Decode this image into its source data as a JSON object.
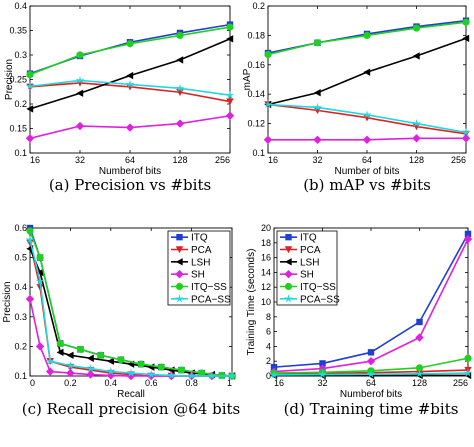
{
  "chart_data": [
    {
      "type": "line",
      "caption": "(a) Precision vs #bits",
      "xlabel": "Numberof bits",
      "ylabel": "Precision",
      "x": [
        16,
        32,
        64,
        128,
        256
      ],
      "x_ticks": [
        "16",
        "32",
        "64",
        "128",
        "256"
      ],
      "ylim": [
        0.1,
        0.4
      ],
      "y_ticks": [
        "0.1",
        "0.15",
        "0.2",
        "0.25",
        "0.3",
        "0.35",
        "0.4"
      ],
      "series": [
        {
          "id": "ITQ",
          "color": "#1f3fd0",
          "marker": "square",
          "values": [
            0.262,
            0.298,
            0.326,
            0.345,
            0.362
          ]
        },
        {
          "id": "PCA",
          "color": "#e02020",
          "marker": "triangle-down",
          "values": [
            0.235,
            0.243,
            0.235,
            0.224,
            0.205
          ]
        },
        {
          "id": "LSH",
          "color": "#000000",
          "marker": "triangle-left",
          "values": [
            0.19,
            0.222,
            0.258,
            0.29,
            0.333
          ]
        },
        {
          "id": "SH",
          "color": "#e020e0",
          "marker": "diamond",
          "values": [
            0.13,
            0.155,
            0.152,
            0.16,
            0.176
          ]
        },
        {
          "id": "ITQ-SS",
          "color": "#20d020",
          "marker": "circle",
          "values": [
            0.26,
            0.3,
            0.323,
            0.34,
            0.357
          ]
        },
        {
          "id": "PCA-SS",
          "color": "#20d8e0",
          "marker": "star",
          "values": [
            0.236,
            0.248,
            0.24,
            0.232,
            0.218
          ]
        }
      ]
    },
    {
      "type": "line",
      "caption": "(b) mAP vs #bits",
      "xlabel": "Number of bits",
      "ylabel": "mAP",
      "x": [
        16,
        32,
        64,
        128,
        256
      ],
      "x_ticks": [
        "16",
        "32",
        "64",
        "128",
        "256"
      ],
      "ylim": [
        0.1,
        0.2
      ],
      "y_ticks": [
        "0.1",
        "0.12",
        "0.14",
        "0.16",
        "0.18",
        "0.2"
      ],
      "series": [
        {
          "id": "ITQ",
          "color": "#1f3fd0",
          "marker": "square",
          "values": [
            0.168,
            0.175,
            0.181,
            0.186,
            0.19
          ]
        },
        {
          "id": "PCA",
          "color": "#e02020",
          "marker": "triangle-down",
          "values": [
            0.133,
            0.129,
            0.124,
            0.118,
            0.113
          ]
        },
        {
          "id": "LSH",
          "color": "#000000",
          "marker": "triangle-left",
          "values": [
            0.133,
            0.141,
            0.155,
            0.166,
            0.178
          ]
        },
        {
          "id": "SH",
          "color": "#e020e0",
          "marker": "diamond",
          "values": [
            0.109,
            0.109,
            0.109,
            0.11,
            0.11
          ]
        },
        {
          "id": "ITQ-SS",
          "color": "#20d020",
          "marker": "circle",
          "values": [
            0.167,
            0.175,
            0.18,
            0.185,
            0.189
          ]
        },
        {
          "id": "PCA-SS",
          "color": "#20d8e0",
          "marker": "star",
          "values": [
            0.133,
            0.131,
            0.126,
            0.12,
            0.114
          ]
        }
      ]
    },
    {
      "type": "line",
      "caption": "(c) Recall precision @64 bits",
      "xlabel": "Recall",
      "ylabel": "Precision",
      "x_ticks": [
        "0",
        "0.2",
        "0.4",
        "0.6",
        "0.8",
        "1"
      ],
      "xlim": [
        0,
        1
      ],
      "ylim": [
        0.1,
        0.6
      ],
      "y_ticks": [
        "0.1",
        "0.2",
        "0.3",
        "0.4",
        "0.5",
        "0.6"
      ],
      "legend": {
        "position": "top-right",
        "entries": [
          "ITQ",
          "PCA",
          "LSH",
          "SH",
          "ITQ−SS",
          "PCA−SS"
        ]
      },
      "series": [
        {
          "id": "ITQ",
          "color": "#1f3fd0",
          "marker": "square",
          "x": [
            0,
            0.05,
            0.15,
            0.25,
            0.35,
            0.45,
            0.55,
            0.65,
            0.75,
            0.85,
            0.95,
            1.0
          ],
          "values": [
            0.6,
            0.5,
            0.21,
            0.19,
            0.17,
            0.155,
            0.14,
            0.13,
            0.12,
            0.11,
            0.102,
            0.1
          ]
        },
        {
          "id": "PCA",
          "color": "#e02020",
          "marker": "triangle-down",
          "x": [
            0,
            0.05,
            0.1,
            0.2,
            0.3,
            0.4,
            0.5,
            0.6,
            0.7,
            0.8,
            0.9,
            1.0
          ],
          "values": [
            0.55,
            0.4,
            0.15,
            0.13,
            0.12,
            0.11,
            0.105,
            0.1,
            0.1,
            0.1,
            0.1,
            0.1
          ]
        },
        {
          "id": "LSH",
          "color": "#000000",
          "marker": "triangle-left",
          "x": [
            0,
            0.05,
            0.15,
            0.2,
            0.3,
            0.4,
            0.5,
            0.6,
            0.7,
            0.8,
            0.9,
            1.0
          ],
          "values": [
            0.53,
            0.45,
            0.18,
            0.17,
            0.16,
            0.15,
            0.14,
            0.13,
            0.12,
            0.11,
            0.105,
            0.1
          ]
        },
        {
          "id": "SH",
          "color": "#e020e0",
          "marker": "diamond",
          "x": [
            0,
            0.05,
            0.1,
            0.2,
            0.3,
            0.4,
            0.5,
            0.6,
            0.7,
            0.8,
            0.9,
            1.0
          ],
          "values": [
            0.36,
            0.2,
            0.115,
            0.11,
            0.105,
            0.102,
            0.1,
            0.1,
            0.1,
            0.1,
            0.1,
            0.1
          ]
        },
        {
          "id": "ITQ-SS",
          "color": "#20d020",
          "marker": "circle",
          "x": [
            0,
            0.05,
            0.15,
            0.25,
            0.35,
            0.45,
            0.55,
            0.65,
            0.75,
            0.85,
            0.95,
            1.0
          ],
          "values": [
            0.59,
            0.5,
            0.21,
            0.19,
            0.17,
            0.155,
            0.14,
            0.13,
            0.12,
            0.11,
            0.102,
            0.1
          ]
        },
        {
          "id": "PCA-SS",
          "color": "#20d8e0",
          "marker": "star",
          "x": [
            0,
            0.05,
            0.1,
            0.2,
            0.3,
            0.4,
            0.5,
            0.6,
            0.7,
            0.8,
            0.9,
            1.0
          ],
          "values": [
            0.56,
            0.42,
            0.15,
            0.135,
            0.125,
            0.115,
            0.11,
            0.105,
            0.102,
            0.1,
            0.1,
            0.1
          ]
        }
      ]
    },
    {
      "type": "line",
      "caption": "(d) Training time #bits",
      "xlabel": "Numberof bits",
      "ylabel": "Training Time (seconds)",
      "x": [
        16,
        32,
        64,
        128,
        256
      ],
      "x_ticks": [
        "16",
        "32",
        "64",
        "128",
        "256"
      ],
      "ylim": [
        0,
        20
      ],
      "y_ticks": [
        "0",
        "2",
        "4",
        "6",
        "8",
        "10",
        "12",
        "14",
        "16",
        "18",
        "20"
      ],
      "legend": {
        "position": "top-left",
        "entries": [
          "ITQ",
          "PCA",
          "LSH",
          "SH",
          "ITQ−SS",
          "PCA−SS"
        ]
      },
      "series": [
        {
          "id": "ITQ",
          "color": "#1f3fd0",
          "marker": "square",
          "values": [
            1.2,
            1.7,
            3.2,
            7.3,
            19.2
          ]
        },
        {
          "id": "PCA",
          "color": "#e02020",
          "marker": "triangle-down",
          "values": [
            0.3,
            0.35,
            0.45,
            0.6,
            0.8
          ]
        },
        {
          "id": "LSH",
          "color": "#000000",
          "marker": "triangle-left",
          "values": [
            0.05,
            0.05,
            0.06,
            0.07,
            0.08
          ]
        },
        {
          "id": "SH",
          "color": "#e020e0",
          "marker": "diamond",
          "values": [
            0.6,
            1.0,
            2.0,
            5.2,
            18.5
          ]
        },
        {
          "id": "ITQ-SS",
          "color": "#20d020",
          "marker": "circle",
          "values": [
            0.4,
            0.5,
            0.7,
            1.1,
            2.4
          ]
        },
        {
          "id": "PCA-SS",
          "color": "#20d8e0",
          "marker": "star",
          "values": [
            0.15,
            0.2,
            0.25,
            0.3,
            0.4
          ]
        }
      ]
    }
  ]
}
